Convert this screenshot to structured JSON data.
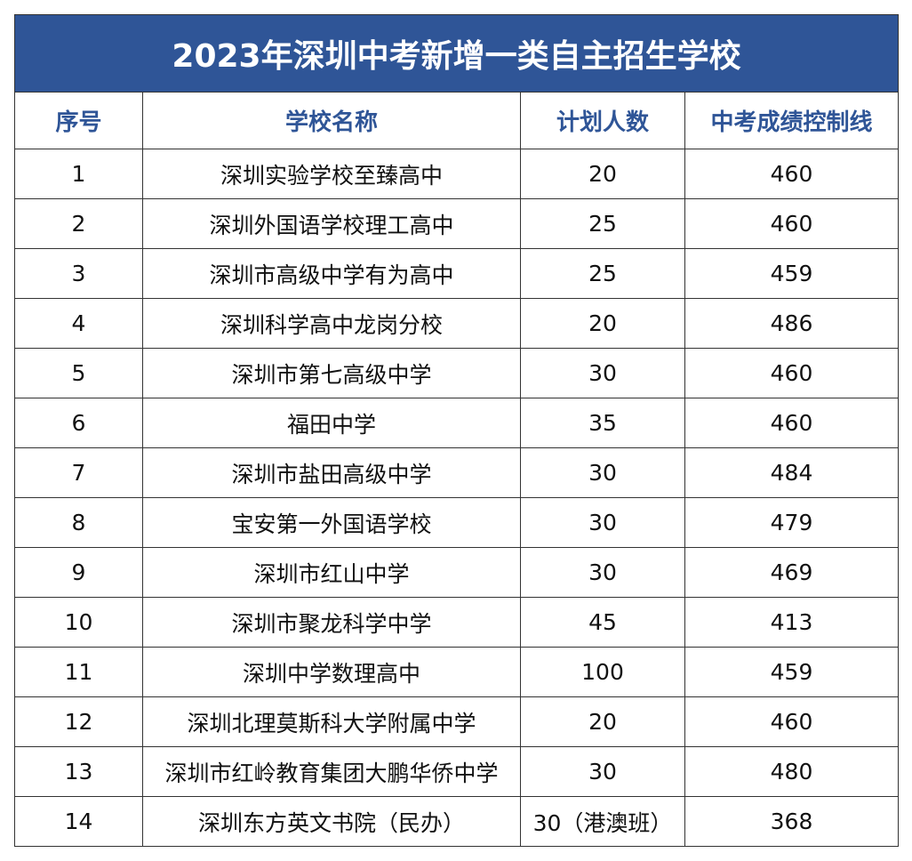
{
  "table": {
    "title": "2023年深圳中考新增一类自主招生学校",
    "columns": [
      "序号",
      "学校名称",
      "计划人数",
      "中考成绩控制线"
    ],
    "rows": [
      [
        1,
        "深圳实验学校至臻高中",
        20,
        460
      ],
      [
        2,
        "深圳外国语学校理工高中",
        25,
        460
      ],
      [
        3,
        "深圳市高级中学有为高中",
        25,
        459
      ],
      [
        4,
        "深圳科学高中龙岗分校",
        20,
        486
      ],
      [
        5,
        "深圳市第七高级中学",
        30,
        460
      ],
      [
        6,
        "福田中学",
        35,
        460
      ],
      [
        7,
        "深圳市盐田高级中学",
        30,
        484
      ],
      [
        8,
        "宝安第一外国语学校",
        30,
        479
      ],
      [
        9,
        "深圳市红山中学",
        30,
        469
      ],
      [
        10,
        "深圳市聚龙科学中学",
        45,
        413
      ],
      [
        11,
        "深圳中学数理高中",
        100,
        459
      ],
      [
        12,
        "深圳北理莫斯科大学附属中学",
        20,
        460
      ],
      [
        13,
        "深圳市红岭教育集团大鹏华侨中学",
        30,
        480
      ],
      [
        14,
        "深圳东方英文书院（民办）",
        "30（港澳班）",
        368
      ]
    ]
  }
}
